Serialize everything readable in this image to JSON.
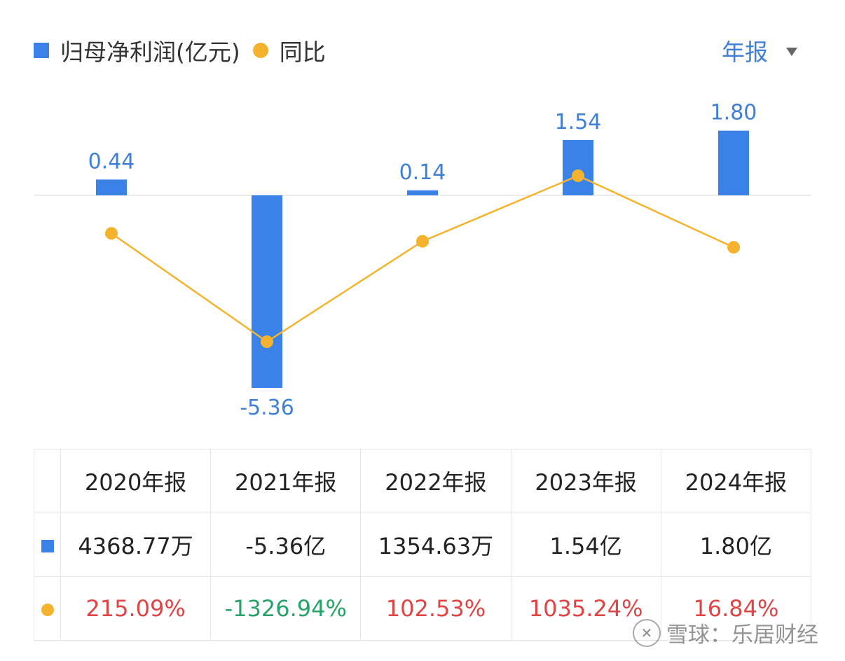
{
  "legend": {
    "bar_label": "归母净利润(亿元)",
    "line_label": "同比"
  },
  "period_selector": {
    "label": "年报",
    "icon": "caret-down-icon"
  },
  "colors": {
    "bar": "#3b82e8",
    "line": "#f5b32d",
    "label_blue": "#3f7fd6",
    "positive_red": "#e04444",
    "negative_green": "#27a36a",
    "baseline": "#e5e5e5"
  },
  "chart_data": {
    "type": "bar",
    "categories": [
      "2020年报",
      "2021年报",
      "2022年报",
      "2023年报",
      "2024年报"
    ],
    "series": [
      {
        "name": "归母净利润(亿元)",
        "type": "bar",
        "values": [
          0.44,
          -5.36,
          0.14,
          1.54,
          1.8
        ],
        "labels": [
          "0.44",
          "-5.36",
          "0.14",
          "1.54",
          "1.80"
        ]
      },
      {
        "name": "同比",
        "type": "line",
        "values": [
          215.09,
          -1326.94,
          102.53,
          1035.24,
          16.84
        ]
      }
    ],
    "grid": false,
    "legend_position": "top-left"
  },
  "table": {
    "headers": [
      "2020年报",
      "2021年报",
      "2022年报",
      "2023年报",
      "2024年报"
    ],
    "profit_row": [
      "4368.77万",
      "-5.36亿",
      "1354.63万",
      "1.54亿",
      "1.80亿"
    ],
    "yoy_row": [
      "215.09%",
      "-1326.94%",
      "102.53%",
      "1035.24%",
      "16.84%"
    ]
  },
  "watermark": {
    "text": "雪球：乐居财经",
    "icon": "snowball-logo-icon"
  }
}
